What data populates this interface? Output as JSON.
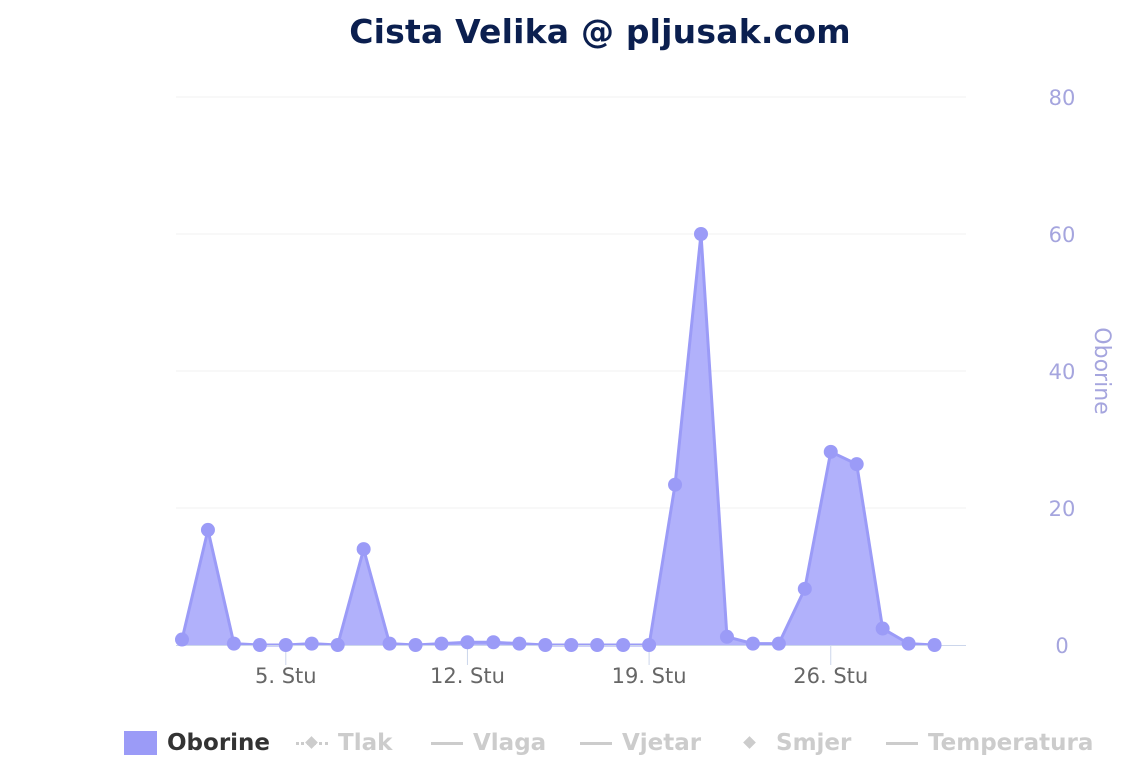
{
  "title": "Cista Velika @ pljusak.com",
  "colors": {
    "series": "#9b9bf7",
    "area": "#b1b1fb",
    "axis_text_right": "#a5a5de",
    "axis_text_bottom": "#666666",
    "title": "#0b1f4f",
    "grid": "#f0f0f0",
    "legend_inactive": "#cccccc"
  },
  "chart_data": {
    "type": "area",
    "title": "Cista Velika @ pljusak.com",
    "xlabel": "",
    "ylabel": "Oborine",
    "x_unit": "day of month (Stu)",
    "xlim": [
      1,
      30
    ],
    "x_ticks": [
      {
        "value": 5,
        "label": "5. Stu"
      },
      {
        "value": 12,
        "label": "12. Stu"
      },
      {
        "value": 19,
        "label": "19. Stu"
      },
      {
        "value": 26,
        "label": "26. Stu"
      }
    ],
    "ylim": [
      0,
      80
    ],
    "y_ticks": [
      0,
      20,
      40,
      60,
      80
    ],
    "y_axis_position": "right",
    "grid": true,
    "legend_position": "bottom",
    "series": [
      {
        "name": "Oborine",
        "x": [
          1,
          2,
          3,
          4,
          5,
          6,
          7,
          8,
          9,
          10,
          11,
          12,
          13,
          14,
          15,
          16,
          17,
          18,
          19,
          20,
          21,
          22,
          23,
          24,
          25,
          26,
          27,
          28,
          29,
          30
        ],
        "values": [
          0.8,
          16.8,
          0.2,
          0.0,
          0.0,
          0.2,
          0.0,
          14.0,
          0.2,
          0.0,
          0.2,
          0.4,
          0.4,
          0.2,
          0.0,
          0.0,
          0.0,
          0.0,
          0.0,
          23.4,
          60.0,
          1.2,
          0.2,
          0.2,
          8.2,
          28.2,
          26.4,
          2.4,
          0.2,
          0.0
        ]
      }
    ],
    "legend": [
      {
        "name": "Oborine",
        "active": true,
        "symbol": "area"
      },
      {
        "name": "Tlak",
        "active": false,
        "symbol": "dotted-diamond"
      },
      {
        "name": "Vlaga",
        "active": false,
        "symbol": "line"
      },
      {
        "name": "Vjetar",
        "active": false,
        "symbol": "line"
      },
      {
        "name": "Smjer",
        "active": false,
        "symbol": "diamond"
      },
      {
        "name": "Temperatura",
        "active": false,
        "symbol": "line"
      }
    ]
  }
}
